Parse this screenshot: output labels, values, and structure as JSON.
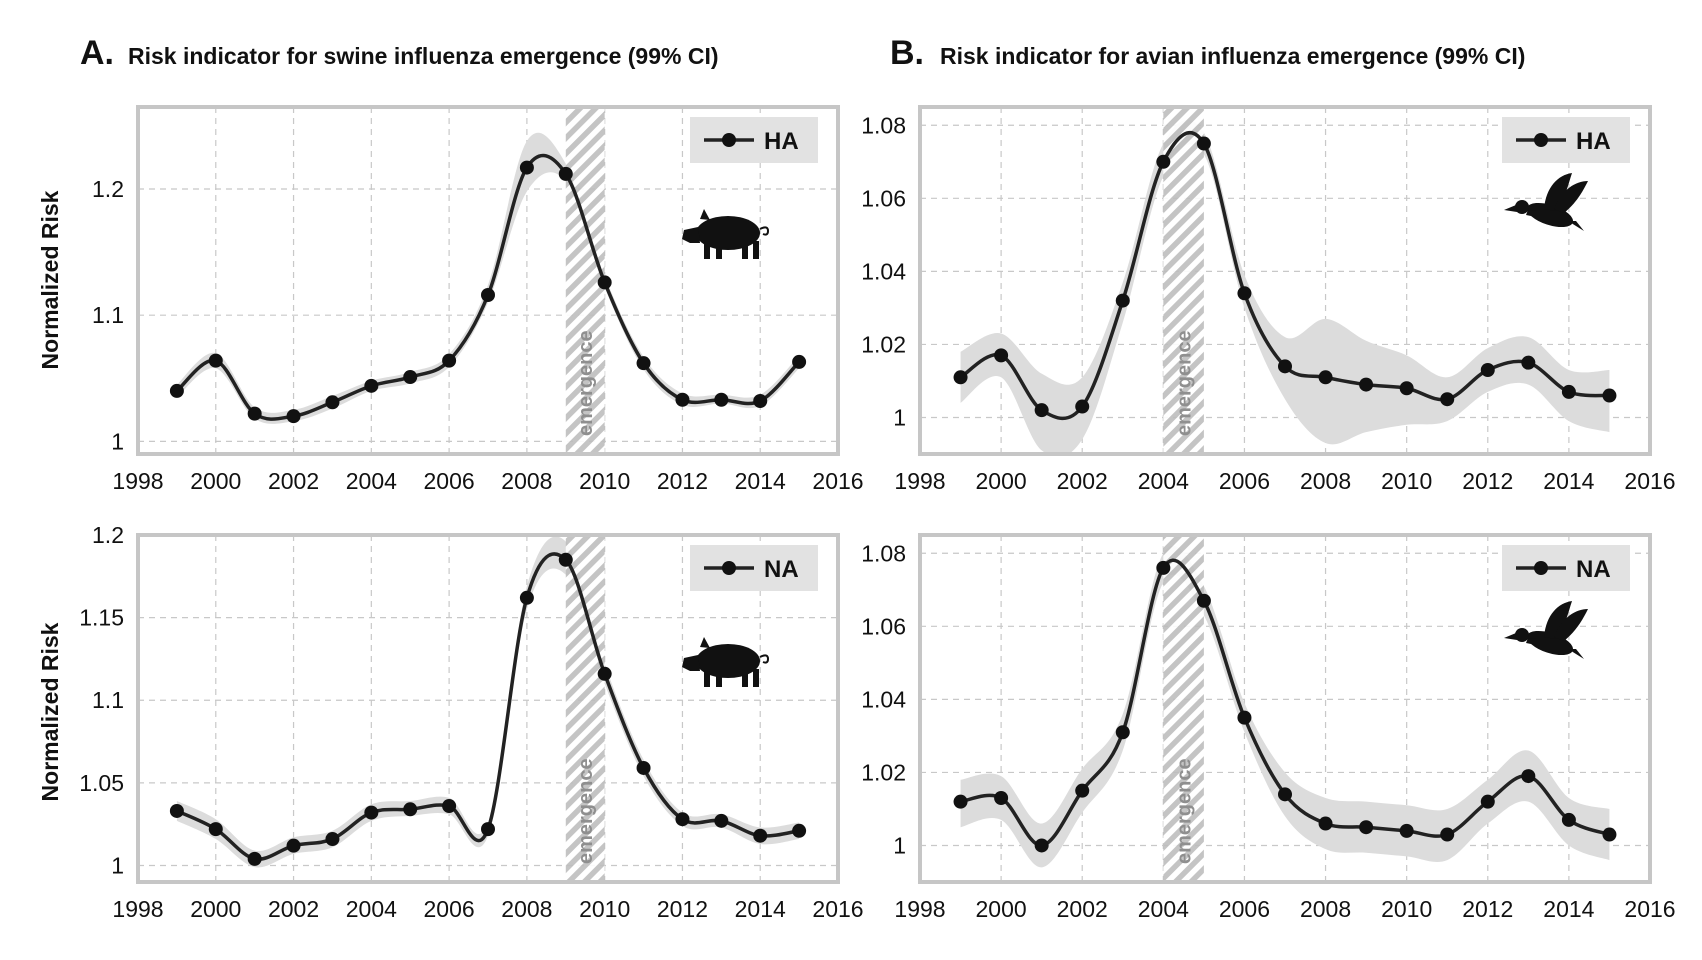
{
  "figure": {
    "panel_groups": [
      {
        "letter": "A.",
        "title": "Risk indicator for swine influenza emergence (99% CI)"
      },
      {
        "letter": "B.",
        "title": "Risk indicator for avian influenza emergence (99% CI)"
      }
    ],
    "ylabel": "Normalized Risk",
    "emergence_label": "emergence",
    "colors": {
      "line": "#222222",
      "ci_band": "#dcdcdc",
      "grid": "#c8c8c8",
      "frame": "#c6c6c6",
      "hatch": "#bdbdbd",
      "legend_bg": "#e2e2e2"
    }
  },
  "chart_data": [
    {
      "type": "line",
      "group": "A",
      "animal_icon": "pig-icon",
      "series": [
        {
          "name": "HA",
          "x": [
            1999,
            2000,
            2001,
            2002,
            2003,
            2004,
            2005,
            2006,
            2007,
            2008,
            2009,
            2010,
            2011,
            2012,
            2013,
            2014,
            2015
          ],
          "values": [
            1.04,
            1.064,
            1.022,
            1.02,
            1.031,
            1.044,
            1.051,
            1.064,
            1.116,
            1.217,
            1.212,
            1.126,
            1.062,
            1.033,
            1.033,
            1.032,
            1.063
          ],
          "ci_lower": [
            1.035,
            1.058,
            1.018,
            1.016,
            1.026,
            1.04,
            1.046,
            1.059,
            1.11,
            1.198,
            1.206,
            1.122,
            1.057,
            1.029,
            1.03,
            1.028,
            1.058
          ],
          "ci_upper": [
            1.045,
            1.07,
            1.027,
            1.025,
            1.036,
            1.048,
            1.055,
            1.069,
            1.124,
            1.238,
            1.22,
            1.131,
            1.067,
            1.038,
            1.037,
            1.037,
            1.068
          ]
        }
      ],
      "emergence_range": [
        2009,
        2010
      ],
      "xlim": [
        1998,
        2016
      ],
      "xticks": [
        1998,
        2000,
        2002,
        2004,
        2006,
        2008,
        2010,
        2012,
        2014,
        2016
      ],
      "ylim": [
        0.99,
        1.265
      ],
      "yticks": [
        1,
        1.1,
        1.2
      ],
      "yticklabels": [
        "1",
        "1.1",
        "1.2"
      ],
      "grid": true,
      "legend": "top-right"
    },
    {
      "type": "line",
      "group": "B",
      "animal_icon": "duck-icon",
      "series": [
        {
          "name": "HA",
          "x": [
            1999,
            2000,
            2001,
            2002,
            2003,
            2004,
            2005,
            2006,
            2007,
            2008,
            2009,
            2010,
            2011,
            2012,
            2013,
            2014,
            2015
          ],
          "values": [
            1.011,
            1.017,
            1.002,
            1.003,
            1.032,
            1.07,
            1.075,
            1.034,
            1.014,
            1.011,
            1.009,
            1.008,
            1.005,
            1.013,
            1.015,
            1.007,
            1.006
          ],
          "ci_lower": [
            1.004,
            1.011,
            0.991,
            0.994,
            1.026,
            1.066,
            1.072,
            1.03,
            1.005,
            0.993,
            0.996,
            0.998,
            0.999,
            1.007,
            1.009,
            0.999,
            0.996
          ],
          "ci_upper": [
            1.018,
            1.023,
            1.012,
            1.011,
            1.037,
            1.075,
            1.078,
            1.039,
            1.022,
            1.027,
            1.021,
            1.017,
            1.011,
            1.019,
            1.022,
            1.013,
            1.013
          ]
        }
      ],
      "emergence_range": [
        2004,
        2005
      ],
      "xlim": [
        1998,
        2016
      ],
      "xticks": [
        1998,
        2000,
        2002,
        2004,
        2006,
        2008,
        2010,
        2012,
        2014,
        2016
      ],
      "ylim": [
        0.99,
        1.085
      ],
      "yticks": [
        1,
        1.02,
        1.04,
        1.06,
        1.08
      ],
      "yticklabels": [
        "1",
        "1.02",
        "1.04",
        "1.06",
        "1.08"
      ],
      "grid": true,
      "legend": "top-right"
    },
    {
      "type": "line",
      "group": "A",
      "animal_icon": "pig-icon",
      "series": [
        {
          "name": "NA",
          "x": [
            1999,
            2000,
            2001,
            2002,
            2003,
            2004,
            2005,
            2006,
            2007,
            2008,
            2009,
            2010,
            2011,
            2012,
            2013,
            2014,
            2015
          ],
          "values": [
            1.033,
            1.022,
            1.004,
            1.012,
            1.016,
            1.032,
            1.034,
            1.036,
            1.022,
            1.162,
            1.185,
            1.116,
            1.059,
            1.028,
            1.027,
            1.018,
            1.021
          ],
          "ci_lower": [
            1.027,
            1.016,
            0.999,
            1.007,
            1.011,
            1.027,
            1.03,
            1.031,
            1.018,
            1.155,
            1.176,
            1.11,
            1.054,
            1.024,
            1.023,
            1.013,
            1.016
          ],
          "ci_upper": [
            1.039,
            1.028,
            1.009,
            1.017,
            1.021,
            1.037,
            1.039,
            1.041,
            1.026,
            1.169,
            1.196,
            1.122,
            1.064,
            1.032,
            1.031,
            1.023,
            1.026
          ]
        }
      ],
      "emergence_range": [
        2009,
        2010
      ],
      "xlim": [
        1998,
        2016
      ],
      "xticks": [
        1998,
        2000,
        2002,
        2004,
        2006,
        2008,
        2010,
        2012,
        2014,
        2016
      ],
      "ylim": [
        0.99,
        1.2
      ],
      "yticks": [
        1,
        1.05,
        1.1,
        1.15,
        1.2
      ],
      "yticklabels": [
        "1",
        "1.05",
        "1.1",
        "1.15",
        "1.2"
      ],
      "grid": true,
      "legend": "top-right"
    },
    {
      "type": "line",
      "group": "B",
      "animal_icon": "duck-icon",
      "series": [
        {
          "name": "NA",
          "x": [
            1999,
            2000,
            2001,
            2002,
            2003,
            2004,
            2005,
            2006,
            2007,
            2008,
            2009,
            2010,
            2011,
            2012,
            2013,
            2014,
            2015
          ],
          "values": [
            1.012,
            1.013,
            1.0,
            1.015,
            1.031,
            1.076,
            1.067,
            1.035,
            1.014,
            1.006,
            1.005,
            1.004,
            1.003,
            1.012,
            1.019,
            1.007,
            1.003
          ],
          "ci_lower": [
            1.005,
            1.007,
            0.994,
            1.009,
            1.026,
            1.072,
            1.063,
            1.031,
            1.008,
            0.999,
            0.998,
            0.997,
            0.996,
            1.006,
            1.012,
            1.0,
            0.996
          ],
          "ci_upper": [
            1.018,
            1.019,
            1.006,
            1.021,
            1.036,
            1.08,
            1.071,
            1.039,
            1.02,
            1.013,
            1.012,
            1.011,
            1.01,
            1.018,
            1.026,
            1.013,
            1.01
          ]
        }
      ],
      "emergence_range": [
        2004,
        2005
      ],
      "xlim": [
        1998,
        2016
      ],
      "xticks": [
        1998,
        2000,
        2002,
        2004,
        2006,
        2008,
        2010,
        2012,
        2014,
        2016
      ],
      "ylim": [
        0.99,
        1.085
      ],
      "yticks": [
        1,
        1.02,
        1.04,
        1.06,
        1.08
      ],
      "yticklabels": [
        "1",
        "1.02",
        "1.04",
        "1.06",
        "1.08"
      ],
      "grid": true,
      "legend": "top-right"
    }
  ]
}
